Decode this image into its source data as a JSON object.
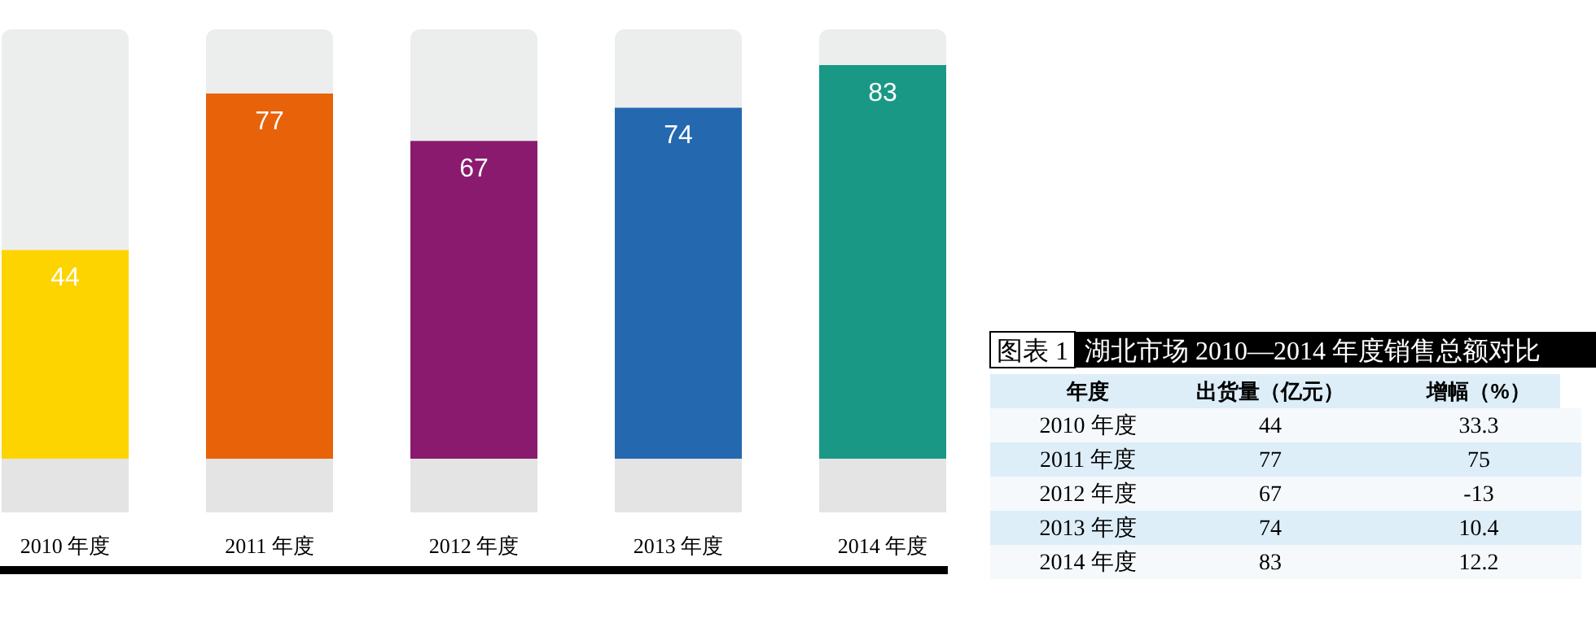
{
  "chart_data": [
    {
      "type": "bar",
      "categories": [
        "2010 年度",
        "2011 年度",
        "2012 年度",
        "2013 年度",
        "2014 年度"
      ],
      "values": [
        44,
        77,
        67,
        74,
        83
      ],
      "colors": [
        "#fdd400",
        "#e8620a",
        "#8a1a6e",
        "#2469b0",
        "#1a9886"
      ],
      "data_labels": true
    },
    {
      "type": "heatmap",
      "title": "图表 1",
      "subtitle": "湖北市场 2010—2014 年度销售总额对比",
      "ylabel": "年度",
      "categories": [
        "出货量（亿元）",
        "增幅（%）"
      ],
      "y_categories": [
        "2010 年度",
        "2011 年度",
        "2012 年度",
        "2013 年度",
        "2014 年度"
      ],
      "cells": [
        [
          44,
          33.3
        ],
        [
          77,
          75
        ],
        [
          67,
          -13
        ],
        [
          74,
          10.4
        ],
        [
          83,
          12.2
        ]
      ],
      "data_labels": true
    }
  ]
}
